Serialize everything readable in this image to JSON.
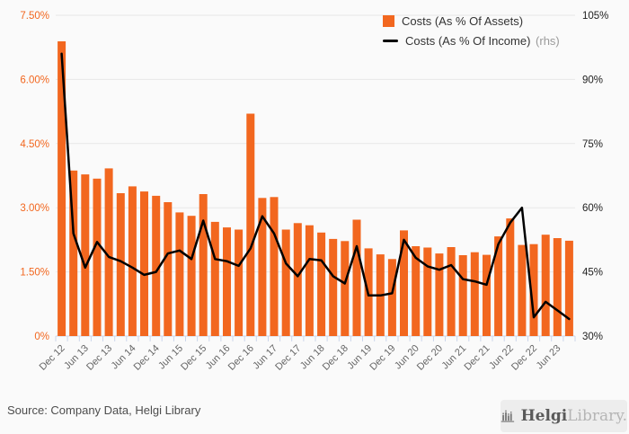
{
  "legend": {
    "series1_label": "Costs (As % Of Assets)",
    "series2_label": "Costs (As % Of Income)",
    "series2_suffix": "(rhs)"
  },
  "footer": {
    "source": "Source: Company Data, Helgi Library",
    "logo_bold": "Helgi",
    "logo_light": "Library."
  },
  "colors": {
    "bar": "#f2671f",
    "line": "#000000",
    "left_axis_label": "#f2671f",
    "right_axis_label": "#222222",
    "x_axis_label": "#666666",
    "grid": "#e7e7e7",
    "axis_tick": "#ccd6eb",
    "background": "#fafafa",
    "legend_text": "#333333",
    "rhs_text": "#9a9a9a"
  },
  "chart_data": {
    "type": "bar",
    "subtype": "combo-bar-line-dual-axis",
    "title": "",
    "xlabel": "",
    "ylabel_left": "Costs (As % Of Assets)",
    "ylabel_right": "Costs (As % Of Income)",
    "grid": true,
    "legend_position": "top",
    "categories": [
      "Dec 12",
      "Mar 13",
      "Jun 13",
      "Sep 13",
      "Dec 13",
      "Mar 14",
      "Jun 14",
      "Sep 14",
      "Dec 14",
      "Mar 15",
      "Jun 15",
      "Sep 15",
      "Dec 15",
      "Mar 16",
      "Jun 16",
      "Sep 16",
      "Dec 16",
      "Mar 17",
      "Jun 17",
      "Sep 17",
      "Dec 17",
      "Mar 18",
      "Jun 18",
      "Sep 18",
      "Dec 18",
      "Mar 19",
      "Jun 19",
      "Sep 19",
      "Dec 19",
      "Mar 20",
      "Jun 20",
      "Sep 20",
      "Dec 20",
      "Mar 21",
      "Jun 21",
      "Sep 21",
      "Dec 21",
      "Mar 22",
      "Jun 22",
      "Sep 22",
      "Dec 22",
      "Mar 23",
      "Jun 23",
      "Sep 23"
    ],
    "x_tick_labels": [
      "Dec 12",
      "Jun 13",
      "Dec 13",
      "Jun 14",
      "Dec 14",
      "Jun 15",
      "Dec 15",
      "Jun 16",
      "Dec 16",
      "Jun 17",
      "Dec 17",
      "Jun 18",
      "Dec 18",
      "Jun 19",
      "Dec 19",
      "Jun 20",
      "Dec 20",
      "Jun 21",
      "Dec 21",
      "Jun 22",
      "Dec 22",
      "Jun 23"
    ],
    "x_label_every": 2,
    "series": [
      {
        "name": "Costs (As % Of Assets)",
        "type": "bar",
        "axis": "left",
        "unit": "%",
        "values": [
          6.89,
          3.87,
          3.78,
          3.68,
          3.92,
          3.34,
          3.5,
          3.38,
          3.28,
          3.13,
          2.89,
          2.81,
          3.32,
          2.67,
          2.54,
          2.49,
          5.2,
          3.23,
          3.25,
          2.49,
          2.64,
          2.59,
          2.42,
          2.27,
          2.22,
          2.72,
          2.05,
          1.91,
          1.8,
          2.47,
          2.1,
          2.07,
          1.93,
          2.08,
          1.89,
          1.96,
          1.9,
          2.33,
          2.75,
          2.13,
          2.15,
          2.37,
          2.29,
          2.23
        ]
      },
      {
        "name": "Costs (As % Of Income)",
        "type": "line",
        "axis": "right",
        "unit": "%",
        "values": [
          96,
          54,
          46,
          52,
          48.5,
          47.5,
          46,
          44.3,
          45,
          49.3,
          50,
          48,
          57,
          48,
          47.5,
          46.4,
          50.5,
          58,
          54,
          47,
          44,
          48,
          47.7,
          44,
          42.3,
          51,
          39.5,
          39.5,
          40,
          52.5,
          48.3,
          46.3,
          45.5,
          46.6,
          43.3,
          42.8,
          42,
          51.5,
          56.5,
          60,
          34.4,
          38,
          36,
          34
        ]
      }
    ],
    "left_axis": {
      "min": 0,
      "max": 7.5,
      "tick_labels": [
        "0%",
        "1.50%",
        "3.00%",
        "4.50%",
        "6.00%",
        "7.50%"
      ]
    },
    "right_axis": {
      "min": 30,
      "max": 105,
      "tick_labels": [
        "30%",
        "45%",
        "60%",
        "75%",
        "90%",
        "105%"
      ]
    }
  }
}
